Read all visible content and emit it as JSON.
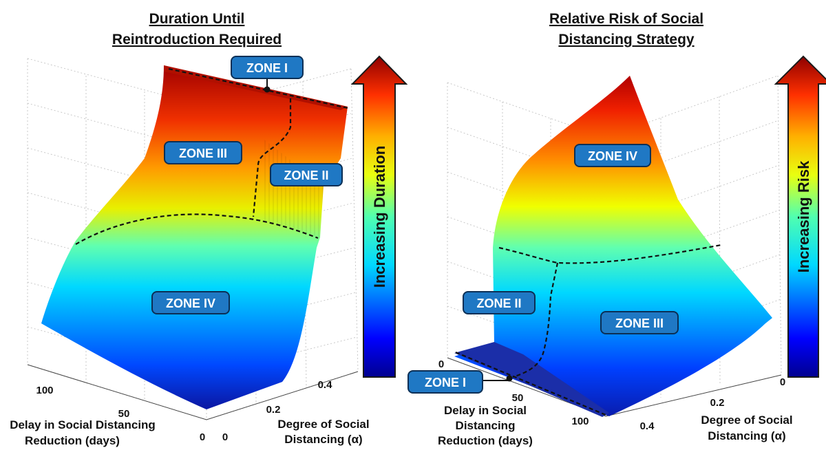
{
  "chart_data": [
    {
      "type": "surface",
      "title_lines": [
        "Duration Until",
        "Reintroduction Required"
      ],
      "axes": {
        "delay": {
          "label_lines": [
            "Delay in Social Distancing",
            "Reduction (days)"
          ],
          "ticks": [
            "100",
            "50",
            "0"
          ]
        },
        "alpha": {
          "label_lines": [
            "Degree of Social",
            "Distancing (α)"
          ],
          "ticks": [
            "0",
            "0.2",
            "0.4"
          ]
        }
      },
      "colorbar_label": "Increasing Duration",
      "zones": [
        "ZONE I",
        "ZONE II",
        "ZONE III",
        "ZONE IV"
      ],
      "grid": true
    },
    {
      "type": "surface",
      "title_lines": [
        "Relative Risk of Social",
        "Distancing Strategy"
      ],
      "axes": {
        "delay": {
          "label_lines": [
            "Delay in Social",
            "Distancing",
            "Reduction (days)"
          ],
          "ticks": [
            "0",
            "50",
            "100"
          ]
        },
        "alpha": {
          "label_lines": [
            "Degree of Social",
            "Distancing (α)"
          ],
          "ticks": [
            "0",
            "0.2",
            "0.4"
          ]
        }
      },
      "colorbar_label": "Increasing Risk",
      "zones": [
        "ZONE IV",
        "ZONE II",
        "ZONE III",
        "ZONE I"
      ],
      "grid": true
    }
  ],
  "colormap": [
    "#00008f",
    "#0000ff",
    "#00c8ff",
    "#2effd0",
    "#a0ff60",
    "#ffff00",
    "#ff9000",
    "#ff2000",
    "#8f0000"
  ]
}
